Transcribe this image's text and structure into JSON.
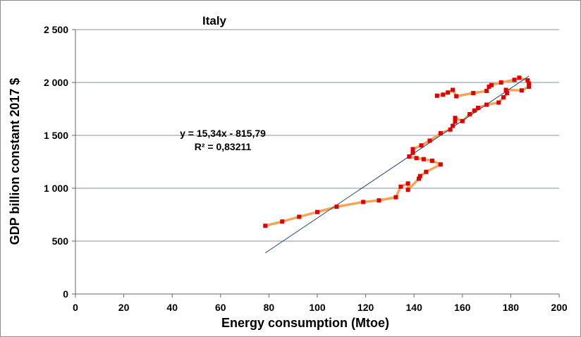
{
  "chart_data": {
    "type": "scatter",
    "title": "Italy",
    "xlabel": "Energy consumption (Mtoe)",
    "ylabel": "GDP billion constant 2017 $",
    "xlim": [
      0,
      200
    ],
    "ylim": [
      0,
      2500
    ],
    "x_ticks": [
      "0",
      "20",
      "40",
      "60",
      "80",
      "100",
      "120",
      "140",
      "160",
      "180",
      "200"
    ],
    "y_ticks": [
      "0",
      "500",
      "1 000",
      "1 500",
      "2 000",
      "2 500"
    ],
    "grid": "horizontal",
    "colors": {
      "points": "#e00000",
      "connecting_line": "#f2a65a",
      "trendline": "#1f3f6e",
      "gridline": "#8a8fa0"
    },
    "trendline": {
      "equation": "y = 15,34x - 815,79",
      "r_squared": "R² = 0,83211",
      "slope": 15.34,
      "intercept": -815.79,
      "x_range": [
        78.5,
        187.5
      ]
    },
    "series": [
      {
        "points": [
          [
            78.5,
            645
          ],
          [
            85.5,
            685
          ],
          [
            92.5,
            730
          ],
          [
            100,
            775
          ],
          [
            108,
            825
          ],
          [
            119,
            870
          ],
          [
            125.5,
            885
          ],
          [
            132.5,
            915
          ],
          [
            134.5,
            1015
          ],
          [
            137.5,
            1045
          ],
          [
            137.5,
            985
          ],
          [
            142,
            1090
          ],
          [
            142.5,
            1115
          ],
          [
            145,
            1155
          ],
          [
            151,
            1225
          ],
          [
            147.5,
            1260
          ],
          [
            144,
            1275
          ],
          [
            141,
            1285
          ],
          [
            138,
            1300
          ],
          [
            139.5,
            1335
          ],
          [
            139.5,
            1370
          ],
          [
            143,
            1405
          ],
          [
            146.5,
            1450
          ],
          [
            151,
            1520
          ],
          [
            155,
            1555
          ],
          [
            156,
            1590
          ],
          [
            157,
            1630
          ],
          [
            157,
            1665
          ],
          [
            160,
            1635
          ],
          [
            163,
            1700
          ],
          [
            165,
            1735
          ],
          [
            166.5,
            1760
          ],
          [
            170,
            1790
          ],
          [
            175,
            1810
          ],
          [
            177,
            1860
          ],
          [
            178.5,
            1900
          ],
          [
            178,
            1930
          ],
          [
            184.5,
            1925
          ],
          [
            187.5,
            1960
          ],
          [
            187.5,
            1990
          ],
          [
            187,
            2020
          ],
          [
            183.5,
            2045
          ],
          [
            181.5,
            2025
          ],
          [
            176,
            2000
          ],
          [
            172,
            1975
          ],
          [
            171,
            1960
          ],
          [
            170,
            1920
          ],
          [
            164.5,
            1900
          ],
          [
            157.5,
            1870
          ],
          [
            156,
            1930
          ],
          [
            154,
            1905
          ],
          [
            152,
            1885
          ],
          [
            149.5,
            1875
          ]
        ]
      }
    ]
  }
}
